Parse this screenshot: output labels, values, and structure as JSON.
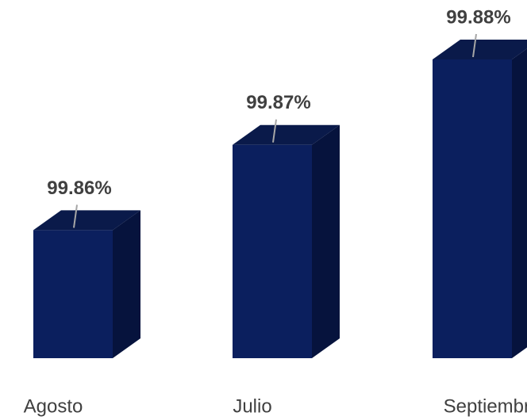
{
  "chart_data": {
    "type": "bar3d",
    "categories": [
      "Agosto",
      "Julio",
      "Septiembre"
    ],
    "values": [
      99.86,
      99.87,
      99.88
    ],
    "value_labels": [
      "99.86%",
      "99.87%",
      "99.88%"
    ],
    "color": "#0b1f5e",
    "ylim": [
      99.845,
      99.88
    ]
  }
}
